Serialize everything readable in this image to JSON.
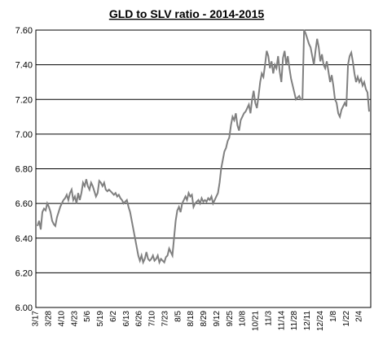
{
  "chart_data": {
    "type": "line",
    "title": "GLD to SLV ratio - 2014-2015",
    "xlabel": "",
    "ylabel": "",
    "ylim": [
      6.0,
      7.6
    ],
    "yticks": [
      "6.00",
      "6.20",
      "6.40",
      "6.60",
      "6.80",
      "7.00",
      "7.20",
      "7.40",
      "7.60"
    ],
    "grid": "horizontal",
    "legend": "none",
    "line_color": "#808080",
    "x_tick_labels": [
      "3/17",
      "3/28",
      "4/10",
      "4/23",
      "5/6",
      "5/19",
      "6/2",
      "6/13",
      "6/26",
      "7/10",
      "7/23",
      "8/5",
      "8/18",
      "8/29",
      "9/12",
      "9/25",
      "10/8",
      "10/21",
      "11/3",
      "11/14",
      "11/28",
      "12/11",
      "12/24",
      "1/8",
      "1/22",
      "2/4"
    ],
    "series": [
      {
        "values": [
          6.47,
          6.5,
          6.45,
          6.55,
          6.57,
          6.56,
          6.6,
          6.58,
          6.55,
          6.5,
          6.48,
          6.47,
          6.52,
          6.55,
          6.58,
          6.6,
          6.62,
          6.63,
          6.65,
          6.62,
          6.66,
          6.68,
          6.62,
          6.64,
          6.6,
          6.66,
          6.62,
          6.66,
          6.72,
          6.7,
          6.74,
          6.7,
          6.68,
          6.72,
          6.7,
          6.67,
          6.64,
          6.66,
          6.73,
          6.72,
          6.7,
          6.72,
          6.68,
          6.67,
          6.68,
          6.67,
          6.66,
          6.65,
          6.66,
          6.64,
          6.65,
          6.63,
          6.62,
          6.6,
          6.61,
          6.62,
          6.58,
          6.55,
          6.5,
          6.45,
          6.4,
          6.35,
          6.3,
          6.27,
          6.3,
          6.26,
          6.28,
          6.32,
          6.28,
          6.27,
          6.28,
          6.3,
          6.27,
          6.28,
          6.3,
          6.26,
          6.28,
          6.27,
          6.26,
          6.29,
          6.3,
          6.34,
          6.32,
          6.3,
          6.4,
          6.5,
          6.56,
          6.58,
          6.55,
          6.6,
          6.62,
          6.64,
          6.62,
          6.66,
          6.64,
          6.65,
          6.58,
          6.6,
          6.61,
          6.62,
          6.6,
          6.63,
          6.61,
          6.62,
          6.61,
          6.63,
          6.62,
          6.64,
          6.6,
          6.62,
          6.64,
          6.66,
          6.72,
          6.8,
          6.85,
          6.9,
          6.92,
          6.96,
          6.98,
          7.05,
          7.1,
          7.08,
          7.12,
          7.05,
          7.02,
          7.08,
          7.1,
          7.12,
          7.13,
          7.15,
          7.17,
          7.12,
          7.2,
          7.25,
          7.18,
          7.15,
          7.22,
          7.3,
          7.35,
          7.33,
          7.4,
          7.48,
          7.45,
          7.38,
          7.42,
          7.35,
          7.4,
          7.38,
          7.45,
          7.36,
          7.3,
          7.44,
          7.48,
          7.4,
          7.45,
          7.38,
          7.32,
          7.28,
          7.24,
          7.2,
          7.21,
          7.22,
          7.2,
          7.2,
          7.6,
          7.58,
          7.55,
          7.52,
          7.5,
          7.45,
          7.4,
          7.48,
          7.55,
          7.5,
          7.42,
          7.46,
          7.4,
          7.38,
          7.42,
          7.36,
          7.3,
          7.34,
          7.28,
          7.2,
          7.18,
          7.12,
          7.1,
          7.14,
          7.16,
          7.18,
          7.16,
          7.4,
          7.45,
          7.47,
          7.42,
          7.35,
          7.3,
          7.33,
          7.3,
          7.32,
          7.28,
          7.3,
          7.26,
          7.24,
          7.13
        ]
      }
    ]
  }
}
